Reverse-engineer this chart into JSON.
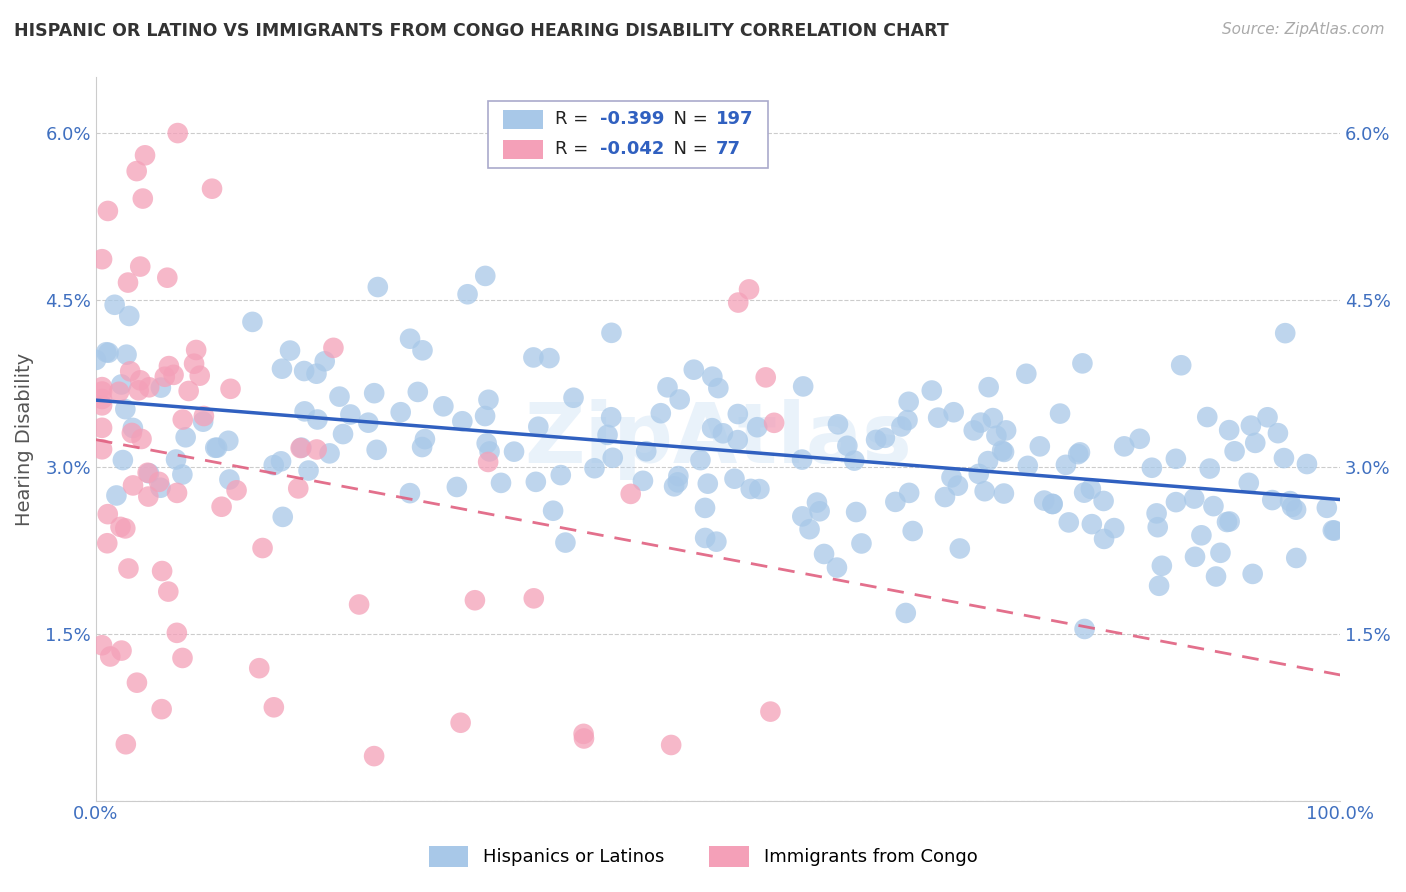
{
  "title": "HISPANIC OR LATINO VS IMMIGRANTS FROM CONGO HEARING DISABILITY CORRELATION CHART",
  "source": "Source: ZipAtlas.com",
  "ylabel": "Hearing Disability",
  "xlim": [
    0.0,
    1.0
  ],
  "ylim": [
    0.0,
    0.065
  ],
  "legend1_R": "-0.399",
  "legend1_N": "197",
  "legend2_R": "-0.042",
  "legend2_N": "77",
  "blue_color": "#a8c8e8",
  "pink_color": "#f4a0b8",
  "blue_line_color": "#3060c0",
  "pink_line_color": "#e06080",
  "label_color": "#4070c0",
  "background_color": "#ffffff",
  "grid_color": "#cccccc",
  "title_color": "#333333",
  "watermark": "ZipAtlas"
}
